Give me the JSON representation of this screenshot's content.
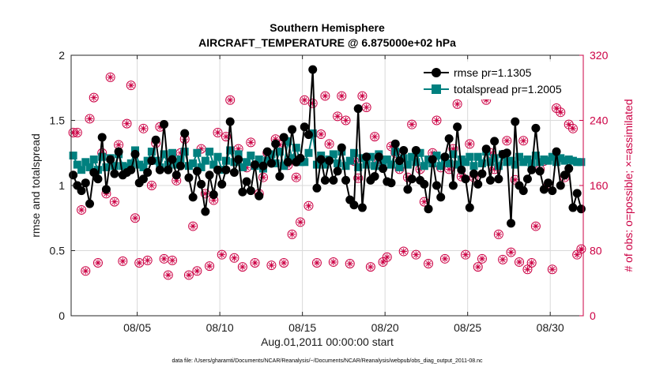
{
  "chart_data": {
    "type": "line",
    "title": "Southern Hemisphere",
    "subtitle": "AIRCRAFT_TEMPERATURE @ 6.875000e+02 hPa",
    "xlabel": "Aug.01,2011 00:00:00 start",
    "ylabel": "rmse and totalspread",
    "ylabel_right": "# of obs: o=possible; ×=assimilated",
    "footer": "data file: /Users/gharamti/Documents/NCAR/Reanalysis/~/Documents/NCAR/Reanalysis/webpub/obs_diag_output_2011-08.nc",
    "xlim": [
      1,
      32
    ],
    "ylim": [
      0,
      2
    ],
    "ylim_right": [
      0,
      320
    ],
    "x_ticks": [
      5,
      10,
      15,
      20,
      25,
      30
    ],
    "x_tick_labels": [
      "08/05",
      "08/10",
      "08/15",
      "08/20",
      "08/25",
      "08/30"
    ],
    "y_ticks": [
      0,
      0.5,
      1,
      1.5,
      2
    ],
    "y_tick_labels": [
      "0",
      "0.5",
      "1",
      "1.5",
      "2"
    ],
    "y_ticks_right": [
      0,
      80,
      160,
      240,
      320
    ],
    "y_tick_labels_right": [
      "0",
      "80",
      "160",
      "240",
      "320"
    ],
    "grid": true,
    "legend_position": "top-right",
    "colors": {
      "rmse": "#000000",
      "totalspread": "#00807f",
      "obs": "#cc0044",
      "grid": "#d9d9d9"
    },
    "series": [
      {
        "name": "rmse pr=1.1305",
        "x": [
          1.125,
          1.375,
          1.625,
          1.875,
          2.125,
          2.375,
          2.625,
          2.875,
          3.125,
          3.375,
          3.625,
          3.875,
          4.125,
          4.375,
          4.625,
          4.875,
          5.125,
          5.375,
          5.625,
          5.875,
          6.125,
          6.375,
          6.625,
          6.875,
          7.125,
          7.375,
          7.625,
          7.875,
          8.125,
          8.375,
          8.625,
          8.875,
          9.125,
          9.375,
          9.625,
          9.875,
          10.125,
          10.375,
          10.625,
          10.875,
          11.125,
          11.375,
          11.625,
          11.875,
          12.125,
          12.375,
          12.625,
          12.875,
          13.125,
          13.375,
          13.625,
          13.875,
          14.125,
          14.375,
          14.625,
          14.875,
          15.125,
          15.375,
          15.625,
          15.875,
          16.125,
          16.375,
          16.625,
          16.875,
          17.125,
          17.375,
          17.625,
          17.875,
          18.125,
          18.375,
          18.625,
          18.875,
          19.125,
          19.375,
          19.625,
          19.875,
          20.125,
          20.375,
          20.625,
          20.875,
          21.125,
          21.375,
          21.625,
          21.875,
          22.125,
          22.375,
          22.625,
          22.875,
          23.125,
          23.375,
          23.625,
          23.875,
          24.125,
          24.375,
          24.625,
          24.875,
          25.125,
          25.375,
          25.625,
          25.875,
          26.125,
          26.375,
          26.625,
          26.875,
          27.125,
          27.375,
          27.625,
          27.875,
          28.125,
          28.375,
          28.625,
          28.875,
          29.125,
          29.375,
          29.625,
          29.875,
          30.125,
          30.375,
          30.625,
          30.875,
          31.125,
          31.375,
          31.625,
          31.875
        ],
        "values": [
          1.08,
          1.0,
          0.96,
          1.02,
          0.86,
          1.1,
          1.05,
          1.37,
          0.97,
          1.2,
          1.09,
          1.26,
          1.08,
          1.1,
          1.12,
          1.24,
          1.02,
          1.05,
          1.1,
          1.19,
          1.35,
          1.12,
          1.47,
          1.12,
          1.2,
          1.08,
          1.15,
          1.4,
          1.06,
          0.91,
          1.11,
          1.01,
          0.8,
          1.08,
          0.93,
          1.12,
          1.01,
          1.12,
          1.49,
          1.1,
          1.2,
          0.95,
          1.03,
          0.96,
          1.16,
          0.92,
          1.15,
          1.26,
          1.17,
          1.32,
          1.07,
          1.37,
          1.18,
          1.43,
          1.18,
          1.21,
          1.45,
          1.39,
          1.89,
          0.98,
          1.2,
          1.04,
          1.19,
          1.04,
          1.11,
          1.29,
          1.04,
          0.89,
          0.85,
          1.59,
          0.83,
          1.22,
          1.04,
          1.07,
          1.22,
          1.13,
          1.03,
          1.02,
          1.32,
          1.19,
          1.27,
          0.97,
          1.05,
          1.27,
          1.04,
          1.01,
          0.82,
          1.2,
          1.0,
          0.91,
          1.22,
          1.36,
          1.0,
          1.45,
          1.12,
          1.05,
          0.83,
          1.09,
          1.01,
          1.09,
          1.28,
          1.04,
          1.34,
          1.05,
          1.24,
          1.25,
          0.71,
          1.49,
          1.0,
          0.96,
          1.05,
          1.12,
          1.44,
          1.11,
          0.97,
          1.02,
          0.96,
          1.26,
          1.0,
          1.08,
          1.13,
          0.83,
          0.94,
          0.82
        ]
      },
      {
        "name": "totalspread pr=1.2005",
        "x": [
          1.125,
          1.375,
          1.625,
          1.875,
          2.125,
          2.375,
          2.625,
          2.875,
          3.125,
          3.375,
          3.625,
          3.875,
          4.125,
          4.375,
          4.625,
          4.875,
          5.125,
          5.375,
          5.625,
          5.875,
          6.125,
          6.375,
          6.625,
          6.875,
          7.125,
          7.375,
          7.625,
          7.875,
          8.125,
          8.375,
          8.625,
          8.875,
          9.125,
          9.375,
          9.625,
          9.875,
          10.125,
          10.375,
          10.625,
          10.875,
          11.125,
          11.375,
          11.625,
          11.875,
          12.125,
          12.375,
          12.625,
          12.875,
          13.125,
          13.375,
          13.625,
          13.875,
          14.125,
          14.375,
          14.625,
          14.875,
          15.125,
          15.375,
          15.625,
          15.875,
          16.125,
          16.375,
          16.625,
          16.875,
          17.125,
          17.375,
          17.625,
          17.875,
          18.125,
          18.375,
          18.625,
          18.875,
          19.125,
          19.375,
          19.625,
          19.875,
          20.125,
          20.375,
          20.625,
          20.875,
          21.125,
          21.375,
          21.625,
          21.875,
          22.125,
          22.375,
          22.625,
          22.875,
          23.125,
          23.375,
          23.625,
          23.875,
          24.125,
          24.375,
          24.625,
          24.875,
          25.125,
          25.375,
          25.625,
          25.875,
          26.125,
          26.375,
          26.625,
          26.875,
          27.125,
          27.375,
          27.625,
          27.875,
          28.125,
          28.375,
          28.625,
          28.875,
          29.125,
          29.375,
          29.625,
          29.875,
          30.125,
          30.375,
          30.625,
          30.875,
          31.125,
          31.375,
          31.625,
          31.875
        ],
        "values": [
          1.23,
          1.16,
          1.12,
          1.18,
          1.14,
          1.2,
          1.12,
          1.22,
          1.14,
          1.21,
          1.15,
          1.24,
          1.15,
          1.14,
          1.17,
          1.27,
          1.16,
          1.14,
          1.19,
          1.26,
          1.19,
          1.14,
          1.24,
          1.16,
          1.25,
          1.16,
          1.2,
          1.26,
          1.15,
          1.17,
          1.25,
          1.14,
          1.19,
          1.26,
          1.16,
          1.22,
          1.12,
          1.19,
          1.27,
          1.18,
          1.24,
          1.14,
          1.18,
          1.23,
          1.15,
          1.2,
          1.13,
          1.19,
          1.24,
          1.17,
          1.26,
          1.15,
          1.34,
          1.21,
          1.29,
          1.18,
          1.18,
          1.25,
          1.4,
          1.16,
          1.23,
          1.16,
          1.2,
          1.24,
          1.17,
          1.26,
          1.15,
          1.19,
          1.25,
          1.14,
          1.21,
          1.16,
          1.22,
          1.15,
          1.24,
          1.18,
          1.2,
          1.16,
          1.26,
          1.14,
          1.21,
          1.16,
          1.22,
          1.18,
          1.25,
          1.15,
          1.2,
          1.17,
          1.23,
          1.15,
          1.21,
          1.17,
          1.24,
          1.16,
          1.2,
          1.18,
          1.22,
          1.15,
          1.22,
          1.17,
          1.26,
          1.18,
          1.21,
          1.15,
          1.24,
          1.18,
          1.19,
          1.16,
          1.22,
          1.18,
          1.2,
          1.17,
          1.23,
          1.18,
          1.2,
          1.19,
          1.22,
          1.18,
          1.21,
          1.19,
          1.2,
          1.19,
          1.18,
          1.18
        ]
      },
      {
        "name": "obs possible",
        "axis": "right",
        "x": [
          1.125,
          1.375,
          1.625,
          1.875,
          2.125,
          2.375,
          2.625,
          2.875,
          3.125,
          3.375,
          3.625,
          3.875,
          4.125,
          4.375,
          4.625,
          4.875,
          5.125,
          5.375,
          5.625,
          5.875,
          6.125,
          6.375,
          6.625,
          6.875,
          7.125,
          7.375,
          7.625,
          7.875,
          8.125,
          8.375,
          8.625,
          8.875,
          9.125,
          9.375,
          9.625,
          9.875,
          10.125,
          10.375,
          10.625,
          10.875,
          11.125,
          11.375,
          11.625,
          11.875,
          12.125,
          12.375,
          12.625,
          12.875,
          13.125,
          13.375,
          13.625,
          13.875,
          14.125,
          14.375,
          14.625,
          14.875,
          15.125,
          15.375,
          15.625,
          15.875,
          16.125,
          16.375,
          16.625,
          16.875,
          17.125,
          17.375,
          17.625,
          17.875,
          18.125,
          18.375,
          18.625,
          18.875,
          19.125,
          19.375,
          19.625,
          19.875,
          20.125,
          20.375,
          20.625,
          20.875,
          21.125,
          21.375,
          21.625,
          21.875,
          22.125,
          22.375,
          22.625,
          22.875,
          23.125,
          23.375,
          23.625,
          23.875,
          24.125,
          24.375,
          24.625,
          24.875,
          25.125,
          25.375,
          25.625,
          25.875,
          26.125,
          26.375,
          26.625,
          26.875,
          27.125,
          27.375,
          27.625,
          27.875,
          28.125,
          28.375,
          28.625,
          28.875,
          29.125,
          29.375,
          29.625,
          29.875,
          30.125,
          30.375,
          30.625,
          30.875,
          31.125,
          31.375,
          31.625,
          31.875
        ],
        "values": [
          225,
          225,
          130,
          55,
          242,
          268,
          65,
          200,
          150,
          293,
          140,
          210,
          67,
          236,
          283,
          120,
          65,
          230,
          68,
          160,
          212,
          232,
          70,
          50,
          68,
          166,
          200,
          217,
          50,
          110,
          55,
          205,
          150,
          61,
          142,
          225,
          75,
          220,
          265,
          71,
          205,
          60,
          182,
          213,
          65,
          150,
          170,
          200,
          62,
          217,
          210,
          65,
          185,
          100,
          170,
          115,
          265,
          135,
          261,
          65,
          223,
          270,
          211,
          66,
          245,
          270,
          240,
          64,
          190,
          169,
          270,
          256,
          60,
          220,
          190,
          66,
          72,
          208,
          200,
          180,
          79,
          170,
          235,
          75,
          180,
          140,
          64,
          200,
          240,
          182,
          70,
          180,
          205,
          260,
          171,
          75,
          211,
          170,
          60,
          70,
          265,
          200,
          180,
          100,
          69,
          215,
          78,
          167,
          66,
          215,
          57,
          65,
          110,
          180,
          190,
          160,
          57,
          255,
          250,
          170,
          235,
          230,
          75,
          82
        ]
      }
    ]
  }
}
